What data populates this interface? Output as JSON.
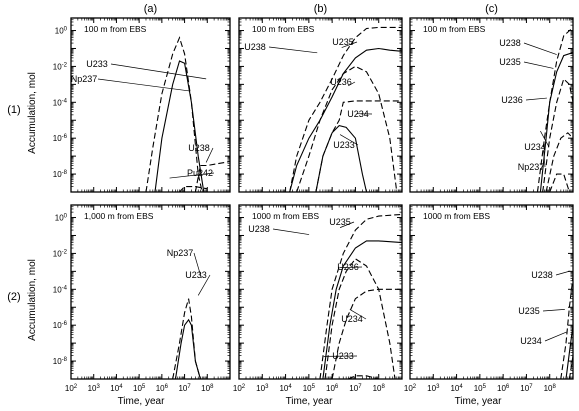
{
  "chart_data": {
    "type": "line",
    "xlabel": "Time, year",
    "ylabel": "Accumulation, mol",
    "x_scale": "log",
    "y_scale": "log",
    "x_ticks": [
      "10^2",
      "10^3",
      "10^4",
      "10^5",
      "10^6",
      "10^7",
      "10^8"
    ],
    "y_ticks": [
      "10^0",
      "10^-2",
      "10^-4",
      "10^-6",
      "10^-8"
    ],
    "xlim": [
      100,
      1000000000
    ],
    "ylim": [
      1e-09,
      5
    ],
    "column_labels": [
      "(a)",
      "(b)",
      "(c)"
    ],
    "row_labels": [
      "(1)",
      "(2)"
    ],
    "panels": [
      {
        "id": "1a",
        "row": 0,
        "col": 0,
        "title": "100  m  from EBS",
        "series": [
          {
            "name": "U233",
            "dash": true,
            "x": [
              200000,
              400000,
              1000000,
              3000000,
              6000000,
              10000000,
              20000000,
              40000000,
              60000000
            ],
            "y": [
              1e-09,
              3e-07,
              0.0003,
              0.05,
              0.4,
              0.05,
              0.0001,
              1e-08,
              1e-09
            ]
          },
          {
            "name": "Np237",
            "dash": false,
            "x": [
              500000,
              1000000,
              3000000,
              6000000,
              10000000,
              20000000,
              40000000,
              70000000
            ],
            "y": [
              1e-09,
              1e-06,
              0.001,
              0.02,
              0.015,
              0.0001,
              1e-07,
              1e-09
            ]
          },
          {
            "name": "U238",
            "dash": true,
            "x": [
              30000000,
              50000000,
              100000000,
              1000000000
            ],
            "y": [
              1e-09,
              3e-08,
              3e-08,
              5e-08
            ]
          },
          {
            "name": "Pu242",
            "dash": true,
            "x": [
              6000000,
              10000000,
              30000000,
              100000000
            ],
            "y": [
              1e-09,
              2e-09,
              2e-09,
              1.5e-09
            ]
          }
        ],
        "labels": [
          {
            "text": "U233",
            "series": "U233"
          },
          {
            "text": "Np237",
            "series": "Np237"
          },
          {
            "text": "U238",
            "series": "U238"
          },
          {
            "text": "Pu242",
            "series": "Pu242"
          }
        ]
      },
      {
        "id": "1b",
        "row": 0,
        "col": 1,
        "title": "100  m  from EBS",
        "series": [
          {
            "name": "U238",
            "dash": true,
            "x": [
              15000,
              30000,
              100000,
              300000,
              1000000,
              3000000,
              10000000,
              30000000,
              100000000,
              1000000000
            ],
            "y": [
              1e-09,
              1e-07,
              1e-05,
              0.0001,
              0.002,
              0.04,
              0.4,
              1.3,
              1.5,
              1.5
            ]
          },
          {
            "name": "U235",
            "dash": false,
            "x": [
              15000,
              30000,
              100000,
              300000,
              1000000,
              3000000,
              10000000,
              30000000,
              100000000,
              300000000,
              1000000000
            ],
            "y": [
              1e-09,
              3e-08,
              1e-06,
              1e-05,
              0.0002,
              0.004,
              0.03,
              0.08,
              0.1,
              0.08,
              0.07
            ]
          },
          {
            "name": "U236",
            "dash": true,
            "x": [
              30000,
              100000,
              300000,
              1000000,
              3000000,
              10000000,
              30000000,
              100000000,
              300000000,
              600000000
            ],
            "y": [
              1e-09,
              1e-07,
              1e-05,
              0.0005,
              0.004,
              0.01,
              0.005,
              0.0003,
              1e-06,
              1e-09
            ]
          },
          {
            "name": "U234",
            "dash": true,
            "x": [
              200000,
              400000,
              1000000,
              2000000,
              3000000,
              10000000,
              100000000,
              1000000000
            ],
            "y": [
              1e-09,
              1e-07,
              2e-06,
              1e-05,
              0.0001,
              0.00012,
              0.00012,
              0.00012
            ]
          },
          {
            "name": "U233",
            "dash": false,
            "x": [
              200000,
              400000,
              1000000,
              2000000,
              4000000,
              10000000,
              20000000,
              30000000
            ],
            "y": [
              1e-09,
              1e-07,
              2e-06,
              5e-06,
              4e-06,
              1e-06,
              1e-08,
              1e-09
            ]
          }
        ],
        "labels": [
          {
            "text": "U238",
            "series": "U238"
          },
          {
            "text": "U235",
            "series": "U235"
          },
          {
            "text": "U236",
            "series": "U236"
          },
          {
            "text": "U234",
            "series": "U234"
          },
          {
            "text": "U233",
            "series": "U233"
          }
        ]
      },
      {
        "id": "1c",
        "row": 0,
        "col": 2,
        "title": "100  m  from EBS",
        "series": [
          {
            "name": "U238",
            "dash": true,
            "x": [
              30000000,
              60000000,
              100000000,
              200000000,
              400000000,
              1000000000
            ],
            "y": [
              1e-09,
              1e-06,
              0.0001,
              0.02,
              0.5,
              1.5
            ]
          },
          {
            "name": "U235",
            "dash": false,
            "x": [
              40000000,
              70000000,
              100000000,
              200000000,
              400000000,
              1000000000
            ],
            "y": [
              1e-09,
              1e-06,
              0.0001,
              0.005,
              0.04,
              0.06
            ]
          },
          {
            "name": "U236",
            "dash": true,
            "x": [
              50000000,
              100000000,
              200000000,
              400000000,
              700000000,
              1000000000
            ],
            "y": [
              1e-09,
              1e-06,
              0.0001,
              0.002,
              0.001,
              0.0001
            ]
          },
          {
            "name": "U234",
            "dash": true,
            "x": [
              70000000,
              150000000,
              300000000,
              600000000,
              1000000000
            ],
            "y": [
              1e-09,
              1e-07,
              1e-06,
              2e-06,
              1e-06
            ]
          },
          {
            "name": "Np237",
            "dash": true,
            "x": [
              100000000,
              200000000,
              400000000,
              700000000,
              1000000000
            ],
            "y": [
              1e-09,
              1e-08,
              1e-08,
              1e-09,
              5e-10
            ]
          }
        ],
        "labels": [
          {
            "text": "U238",
            "series": "U238"
          },
          {
            "text": "U235",
            "series": "U235"
          },
          {
            "text": "U236",
            "series": "U236"
          },
          {
            "text": "U234",
            "series": "U234"
          },
          {
            "text": "Np237",
            "series": "Np237"
          }
        ]
      },
      {
        "id": "2a",
        "row": 1,
        "col": 0,
        "title": "1,000  m  from EBS",
        "series": [
          {
            "name": "Np237",
            "dash": true,
            "x": [
              3000000,
              6000000,
              10000000,
              15000000,
              20000000,
              30000000,
              50000000
            ],
            "y": [
              1e-09,
              1e-07,
              5e-06,
              3e-05,
              3e-06,
              1e-08,
              1e-09
            ]
          },
          {
            "name": "U233",
            "dash": false,
            "x": [
              4000000,
              7000000,
              10000000,
              15000000,
              20000000,
              30000000,
              50000000
            ],
            "y": [
              1e-09,
              1e-07,
              1e-06,
              2e-06,
              1e-06,
              1e-08,
              1e-09
            ]
          }
        ],
        "labels": [
          {
            "text": "Np237",
            "series": "Np237"
          },
          {
            "text": "U233",
            "series": "U233"
          }
        ]
      },
      {
        "id": "2b",
        "row": 1,
        "col": 1,
        "title": "1000  m  from EBS",
        "series": [
          {
            "name": "U238",
            "dash": true,
            "x": [
              300000,
              600000,
              1000000,
              3000000,
              10000000,
              30000000,
              100000000,
              1000000000
            ],
            "y": [
              1e-09,
              1e-06,
              0.0001,
              0.01,
              0.2,
              0.8,
              1.2,
              1.5
            ]
          },
          {
            "name": "U235",
            "dash": false,
            "x": [
              400000,
              800000,
              1500000,
              3000000,
              10000000,
              30000000,
              100000000,
              1000000000
            ],
            "y": [
              1e-09,
              1e-06,
              0.0001,
              0.002,
              0.02,
              0.05,
              0.05,
              0.04
            ]
          },
          {
            "name": "U236",
            "dash": true,
            "x": [
              500000,
              1000000,
              2000000,
              4000000,
              10000000,
              30000000,
              100000000,
              300000000,
              500000000
            ],
            "y": [
              1e-09,
              1e-06,
              0.0001,
              0.001,
              0.005,
              0.002,
              0.0001,
              1e-07,
              1e-09
            ]
          },
          {
            "name": "U234",
            "dash": true,
            "x": [
              1000000,
              2000000,
              4000000,
              10000000,
              30000000,
              100000000,
              1000000000
            ],
            "y": [
              1e-09,
              1e-07,
              2e-06,
              3e-05,
              8e-05,
              0.0001,
              0.0001
            ]
          },
          {
            "name": "U233",
            "dash": true,
            "x": [
              5000000,
              10000000,
              30000000,
              100000000,
              200000000
            ],
            "y": [
              1e-09,
              1.5e-09,
              1.5e-09,
              1e-09,
              5e-10
            ]
          }
        ],
        "labels": [
          {
            "text": "U238",
            "series": "U238"
          },
          {
            "text": "U235",
            "series": "U235"
          },
          {
            "text": "U236",
            "series": "U236"
          },
          {
            "text": "U234",
            "series": "U234"
          },
          {
            "text": "U233",
            "series": "U233"
          }
        ]
      },
      {
        "id": "2c",
        "row": 1,
        "col": 2,
        "title": "1000  m  from EBS",
        "series": [
          {
            "name": "U238",
            "dash": true,
            "x": [
              300000000,
              500000000,
              700000000,
              1000000000
            ],
            "y": [
              1e-09,
              1e-07,
              1e-05,
              0.0005
            ]
          },
          {
            "name": "U235",
            "dash": false,
            "x": [
              500000000,
              700000000,
              1000000000
            ],
            "y": [
              1e-09,
              3e-08,
              1e-06
            ]
          },
          {
            "name": "U234",
            "dash": true,
            "x": [
              700000000,
              1000000000
            ],
            "y": [
              1e-09,
              2e-08
            ]
          }
        ],
        "labels": [
          {
            "text": "U238",
            "series": "U238"
          },
          {
            "text": "U235",
            "series": "U235"
          },
          {
            "text": "U234",
            "series": "U234"
          }
        ]
      }
    ]
  }
}
